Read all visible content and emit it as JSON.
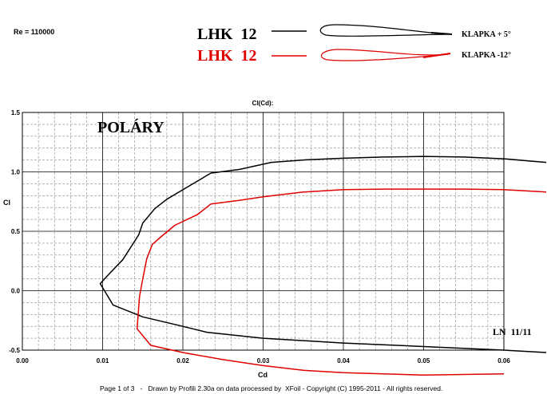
{
  "header": {
    "re": "Re = 110000",
    "legend": [
      {
        "name": "LHK  12",
        "flap": "KLAPKA + 5°",
        "color": "#000000"
      },
      {
        "name": "LHK  12",
        "flap": "KLAPKA -12°",
        "color": "#e00000"
      }
    ]
  },
  "footer": "Page 1 of 3   -   Drawn by Profili 2.30a on data processed by  XFoil - Copyright (C) 1995-2011 - All rights reserved.",
  "chart_data": {
    "type": "line",
    "title": "Cl(Cd):",
    "annotation": "POLÁRY",
    "corner_label": "LN  11/11",
    "xlabel": "Cd",
    "ylabel": "Cl",
    "xlim": [
      0,
      0.06
    ],
    "ylim": [
      -0.5,
      1.5
    ],
    "xticks": [
      "0.00",
      "0.01",
      "0.02",
      "0.03",
      "0.04",
      "0.05",
      "0.06"
    ],
    "yticks": [
      "1.5",
      "1.0",
      "0.5",
      "0.0",
      "-0.5"
    ],
    "grid": true,
    "series": [
      {
        "name": "KLAPKA + 5°",
        "color": "#000000",
        "points": [
          [
            0.0655,
            1.08
          ],
          [
            0.06,
            1.11
          ],
          [
            0.055,
            1.125
          ],
          [
            0.05,
            1.13
          ],
          [
            0.045,
            1.125
          ],
          [
            0.04,
            1.115
          ],
          [
            0.035,
            1.1
          ],
          [
            0.031,
            1.08
          ],
          [
            0.027,
            1.02
          ],
          [
            0.0235,
            0.99
          ],
          [
            0.021,
            0.89
          ],
          [
            0.018,
            0.77
          ],
          [
            0.0165,
            0.69
          ],
          [
            0.015,
            0.57
          ],
          [
            0.0145,
            0.47
          ],
          [
            0.0125,
            0.26
          ],
          [
            0.0108,
            0.14
          ],
          [
            0.0097,
            0.06
          ],
          [
            0.0113,
            -0.12
          ],
          [
            0.015,
            -0.22
          ],
          [
            0.02,
            -0.3
          ],
          [
            0.023,
            -0.35
          ],
          [
            0.03,
            -0.4
          ],
          [
            0.04,
            -0.44
          ],
          [
            0.05,
            -0.47
          ],
          [
            0.06,
            -0.5
          ],
          [
            0.0655,
            -0.52
          ]
        ]
      },
      {
        "name": "KLAPKA -12°",
        "color": "#e00000",
        "points": [
          [
            0.0655,
            0.83
          ],
          [
            0.06,
            0.85
          ],
          [
            0.055,
            0.855
          ],
          [
            0.05,
            0.855
          ],
          [
            0.045,
            0.855
          ],
          [
            0.04,
            0.85
          ],
          [
            0.035,
            0.83
          ],
          [
            0.03,
            0.79
          ],
          [
            0.027,
            0.76
          ],
          [
            0.0235,
            0.73
          ],
          [
            0.0218,
            0.64
          ],
          [
            0.019,
            0.55
          ],
          [
            0.0172,
            0.45
          ],
          [
            0.0162,
            0.39
          ],
          [
            0.0155,
            0.27
          ],
          [
            0.015,
            0.1
          ],
          [
            0.0146,
            -0.05
          ],
          [
            0.0143,
            -0.32
          ],
          [
            0.016,
            -0.46
          ],
          [
            0.02,
            -0.52
          ],
          [
            0.025,
            -0.58
          ],
          [
            0.03,
            -0.63
          ],
          [
            0.035,
            -0.67
          ],
          [
            0.04,
            -0.69
          ],
          [
            0.045,
            -0.7
          ],
          [
            0.05,
            -0.71
          ],
          [
            0.06,
            -0.7
          ]
        ]
      }
    ]
  }
}
